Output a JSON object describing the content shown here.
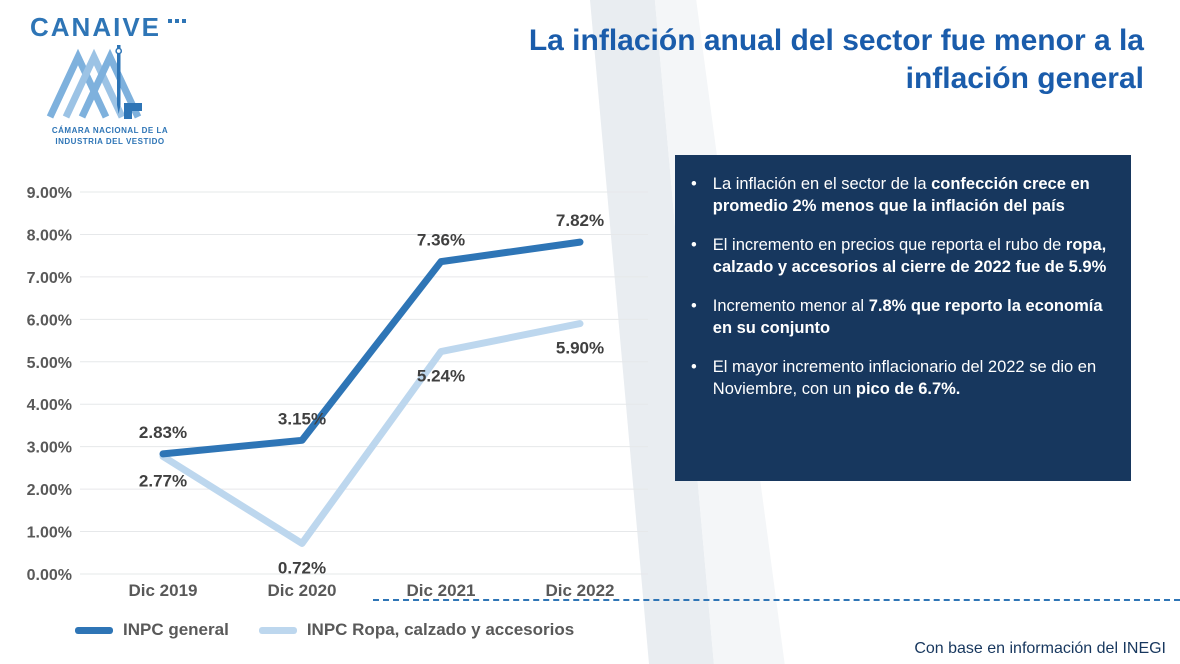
{
  "logo": {
    "brand": "CANAIVE",
    "subtitle_line1": "CÁMARA NACIONAL DE LA",
    "subtitle_line2": "INDUSTRIA DEL VESTIDO"
  },
  "title": "La inflación anual del sector fue menor a la inflación general",
  "chart_data": {
    "type": "line",
    "title": "",
    "xlabel": "",
    "ylabel": "",
    "categories": [
      "Dic 2019",
      "Dic 2020",
      "Dic 2021",
      "Dic 2022"
    ],
    "series": [
      {
        "name": "INPC general",
        "color": "#2E75B6",
        "values": [
          2.83,
          3.15,
          7.36,
          7.82
        ]
      },
      {
        "name": "INPC Ropa, calzado y accesorios",
        "color": "#BDD7EE",
        "values": [
          2.77,
          0.72,
          5.24,
          5.9
        ]
      }
    ],
    "ylim": [
      0,
      9
    ],
    "ytick_step": 1,
    "ytick_format": "0.00%",
    "grid": true,
    "data_labels": true,
    "legend_position": "bottom-left"
  },
  "info_box": {
    "background": "#17375E",
    "bullets": [
      {
        "segments": [
          {
            "t": "La inflación en el sector de la ",
            "b": false
          },
          {
            "t": "confección crece en promedio 2% menos que la inflación del país",
            "b": true
          }
        ]
      },
      {
        "segments": [
          {
            "t": "El incremento en precios que reporta el rubo de ",
            "b": false
          },
          {
            "t": "ropa, calzado y accesorios al cierre de 2022 fue de 5.9%",
            "b": true
          }
        ]
      },
      {
        "segments": [
          {
            "t": "Incremento menor al ",
            "b": false
          },
          {
            "t": "7.8% que reporto la economía en su conjunto",
            "b": true
          }
        ]
      },
      {
        "segments": [
          {
            "t": "El mayor incremento inflacionario del 2022 se dio en Noviembre, con un ",
            "b": false
          },
          {
            "t": "pico de 6.7%.",
            "b": true
          }
        ]
      }
    ]
  },
  "footer": {
    "source": "Con base en información del INEGI"
  },
  "colors": {
    "title": "#1A5CAB",
    "dashed_line": "#2E75B6",
    "footer_text": "#17375E",
    "axis_text": "#595959",
    "data_label_text": "#404040"
  }
}
